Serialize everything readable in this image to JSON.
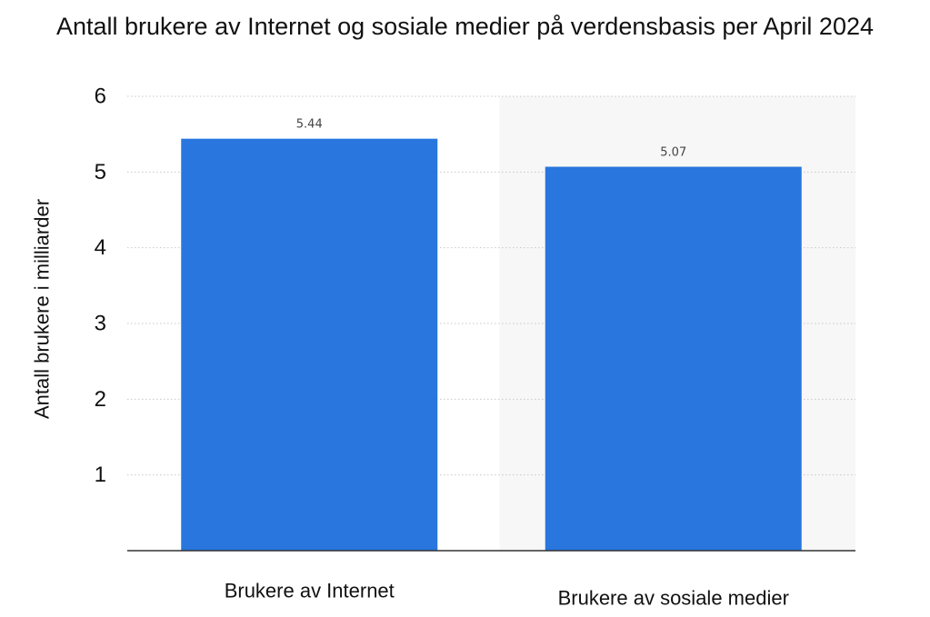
{
  "chart_data": {
    "type": "bar",
    "title": "Antall brukere av Internet og sosiale medier på verdensbasis per April 2024",
    "xlabel": "",
    "ylabel": "Antall brukere i milliarder",
    "categories": [
      "Brukere av Internet",
      "Brukere av sosiale medier"
    ],
    "values": [
      5.44,
      5.07
    ],
    "value_labels": [
      "5.44",
      "5.07"
    ],
    "ylim": [
      0,
      6
    ],
    "yticks": [
      1,
      2,
      3,
      4,
      5,
      6
    ],
    "grid": true,
    "bar_color": "#2876de",
    "highlight_band_color": "#f7f7f7"
  }
}
